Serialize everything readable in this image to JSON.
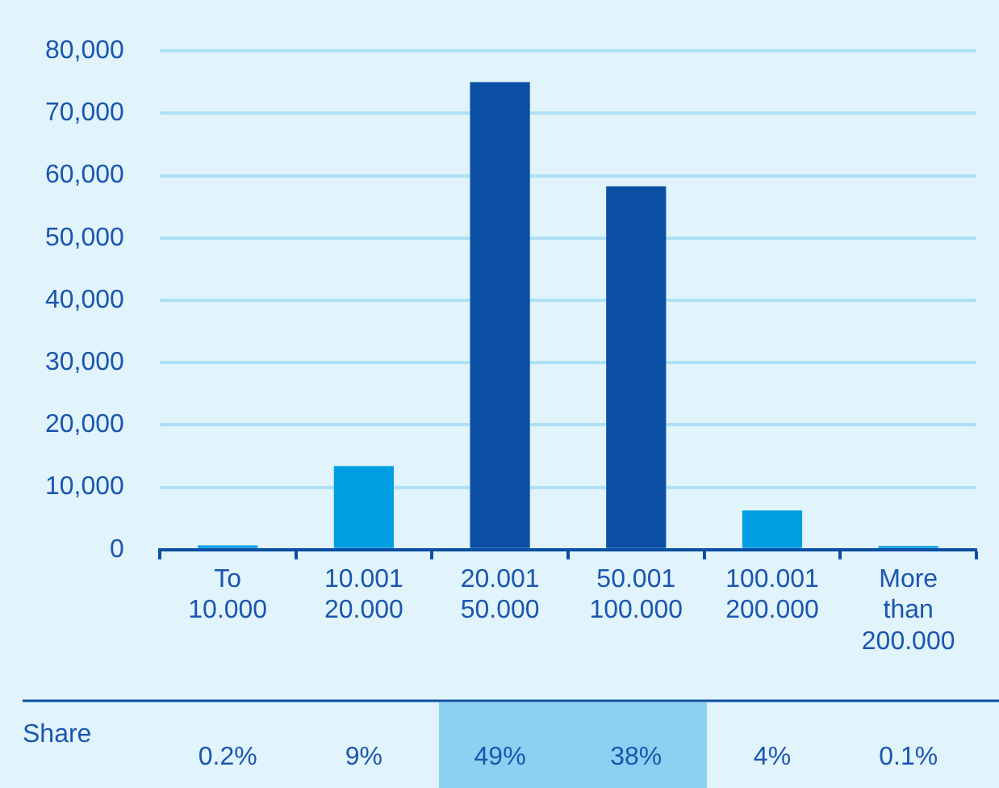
{
  "chart_data": {
    "type": "bar",
    "categories": [
      "To\n10.000",
      "10.001\n20.000",
      "20.001\n50.000",
      "50.001\n100.000",
      "100.001\n200.000",
      "More\nthan\n200.000"
    ],
    "values": [
      700,
      13400,
      75000,
      58300,
      6300,
      600
    ],
    "colors": [
      "#009fe3",
      "#009fe3",
      "#0a4fa3",
      "#0a4fa3",
      "#009fe3",
      "#009fe3"
    ],
    "ylim": [
      0,
      80000
    ],
    "yticks": [
      0,
      {
        "value": 10000,
        "label": "10,000"
      },
      {
        "value": 20000,
        "label": "20,000"
      },
      {
        "value": 30000,
        "label": "30,000"
      },
      {
        "value": 40000,
        "label": "40,000"
      },
      {
        "value": 50000,
        "label": "50,000"
      },
      {
        "value": 60000,
        "label": "60,000"
      },
      {
        "value": 70000,
        "label": "70,000"
      },
      {
        "value": 80000,
        "label": "80,000"
      }
    ],
    "grid": "y",
    "annotations": [
      "Share",
      "0.2%",
      "9%",
      "49%",
      "38%",
      "4%",
      "0.1%"
    ]
  }
}
